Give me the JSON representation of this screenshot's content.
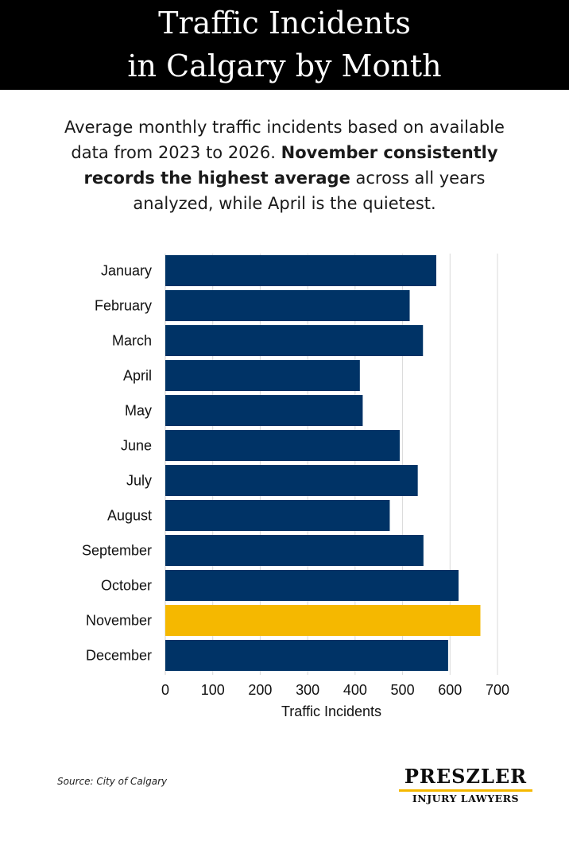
{
  "header": {
    "title_line1": "Traffic Incidents",
    "title_line2": "in Calgary by Month"
  },
  "subtitle": {
    "part1": "Average monthly traffic incidents based on available data from 2023 to 2026. ",
    "bold": "November consistently records the highest average",
    "part2": " across all years analyzed, while April is the quietest."
  },
  "chart_data": {
    "type": "bar",
    "orientation": "horizontal",
    "categories": [
      "January",
      "February",
      "March",
      "April",
      "May",
      "June",
      "July",
      "August",
      "September",
      "October",
      "November",
      "December"
    ],
    "values": [
      571,
      515,
      543,
      410,
      416,
      494,
      532,
      473,
      544,
      618,
      664,
      596
    ],
    "highlight_category": "November",
    "xlabel": "Traffic Incidents",
    "xlim": [
      0,
      700
    ],
    "xticks": [
      0,
      100,
      200,
      300,
      400,
      500,
      600,
      700
    ],
    "grid": "vertical",
    "colors": {
      "bar": "#003366",
      "highlight": "#f5b800",
      "grid": "#d9d9d9"
    }
  },
  "footer": {
    "source": "Source: City of Calgary",
    "logo_top": "PRESZLER",
    "logo_bottom": "INJURY LAWYERS",
    "logo_bar_color": "#f5b800"
  }
}
